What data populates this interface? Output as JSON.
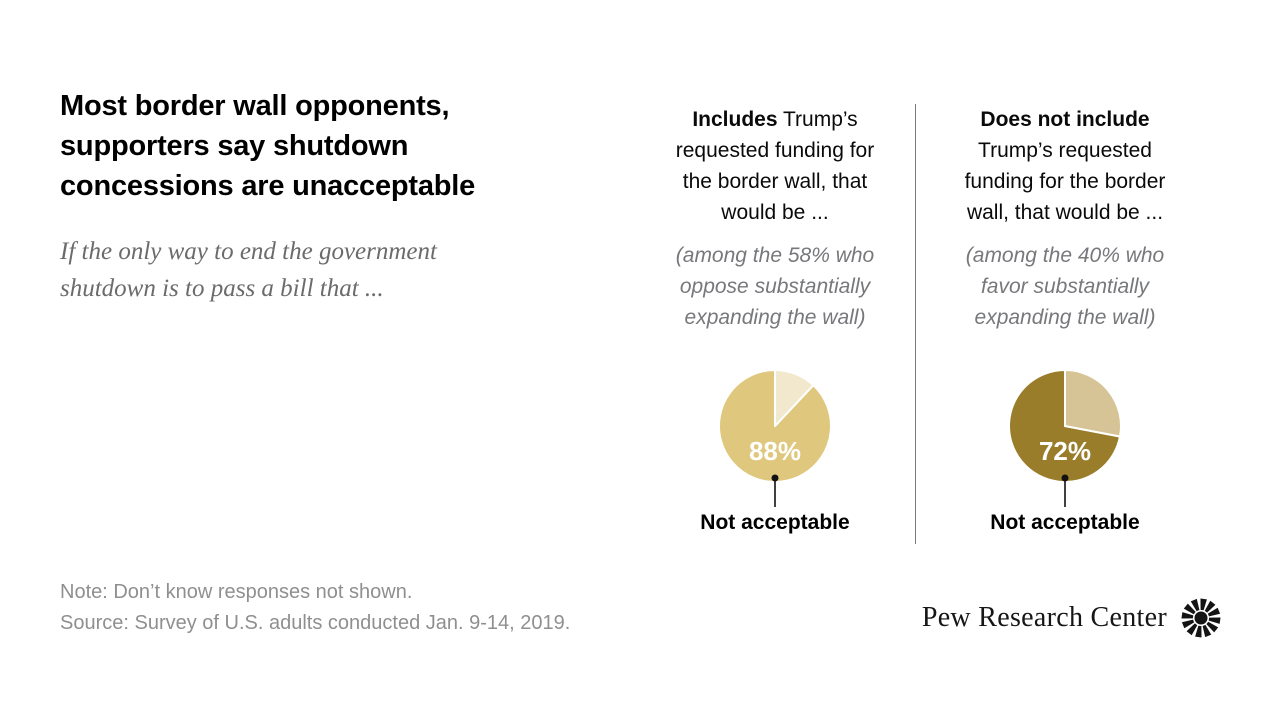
{
  "page": {
    "background": "#ffffff",
    "divider_color": "#7a7a7a"
  },
  "header": {
    "title_lines": [
      "Most border wall opponents,",
      "supporters say shutdown",
      "concessions are unacceptable"
    ],
    "subtitle_lines": [
      "If the only way to end the government",
      "shutdown is to pass a bill that ..."
    ]
  },
  "chart_data": [
    {
      "type": "pie",
      "column_header_bold": "Includes",
      "column_header_rest": " Trump’s requested funding for the border wall, that would be ...",
      "population_note": "(among the 58% who oppose substantially expanding the wall)",
      "slices": [
        {
          "label": "Not acceptable",
          "value": 88,
          "color": "#dfc87e"
        },
        {
          "label": "",
          "value": 12,
          "color": "#f2e8cd"
        }
      ],
      "percent_label": "88%",
      "percent_label_color": "#ffffff",
      "callout_label": "Not acceptable",
      "legend_position": "callout-below",
      "start_angle_deg": 0,
      "direction": "clockwise"
    },
    {
      "type": "pie",
      "column_header_bold": "Does not include",
      "column_header_rest": " Trump’s requested funding for the border wall, that would be ...",
      "population_note": "(among the 40% who favor substantially expanding the wall)",
      "slices": [
        {
          "label": "Not acceptable",
          "value": 72,
          "color": "#9a7d2b"
        },
        {
          "label": "",
          "value": 28,
          "color": "#d6c496"
        }
      ],
      "percent_label": "72%",
      "percent_label_color": "#ffffff",
      "callout_label": "Not acceptable",
      "legend_position": "callout-below",
      "start_angle_deg": 0,
      "direction": "clockwise"
    }
  ],
  "footer": {
    "note": "Note: Don’t know responses not shown.",
    "source": "Source: Survey of U.S. adults conducted Jan. 9-14, 2019.",
    "brand": "Pew Research Center",
    "brand_icon": "pew-sunburst-icon"
  }
}
